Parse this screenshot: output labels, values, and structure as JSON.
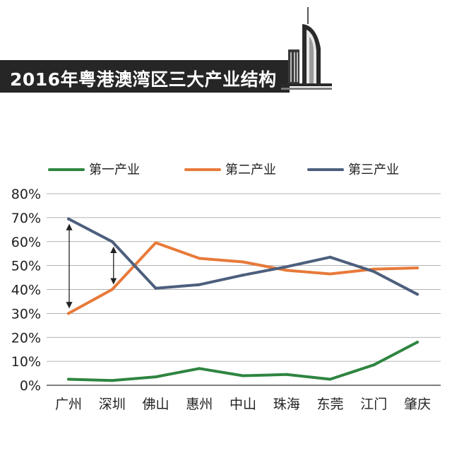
{
  "title": "2016年粤港澳湾区三大产业结构",
  "colors": {
    "primary": "#2e8540",
    "secondary": "#e87a3a",
    "tertiary": "#4d5f7d",
    "title_bar": "#262626",
    "grid": "#000000"
  },
  "icons": {
    "decoration": "skyscraper-icon"
  },
  "chart_data": {
    "type": "line",
    "title": "2016年粤港澳湾区三大产业结构",
    "xlabel": "",
    "ylabel": "",
    "ylim": [
      0,
      80
    ],
    "yticks": [
      0,
      10,
      20,
      30,
      40,
      50,
      60,
      70,
      80
    ],
    "ytick_labels": [
      "0%",
      "10%",
      "20%",
      "30%",
      "40%",
      "50%",
      "60%",
      "70%",
      "80%"
    ],
    "grid": true,
    "legend_position": "top",
    "categories": [
      "广州",
      "深圳",
      "佛山",
      "惠州",
      "中山",
      "珠海",
      "东莞",
      "江门",
      "肇庆"
    ],
    "series": [
      {
        "name": "第一产业",
        "color": "#2e8540",
        "values": [
          2.5,
          2,
          3.5,
          7,
          4,
          4.5,
          2.5,
          8.5,
          18
        ]
      },
      {
        "name": "第二产业",
        "color": "#e87a3a",
        "values": [
          30,
          40,
          59.5,
          53,
          51.5,
          48,
          46.5,
          48.5,
          49
        ]
      },
      {
        "name": "第三产业",
        "color": "#4d5f7d",
        "values": [
          69.5,
          60,
          40.5,
          42,
          46,
          49.5,
          53.5,
          47.5,
          38
        ]
      }
    ],
    "annotations": [
      {
        "type": "double-arrow",
        "category": "广州",
        "from": 30,
        "to": 69.5
      },
      {
        "type": "double-arrow",
        "category": "深圳",
        "from": 40,
        "to": 60
      }
    ]
  }
}
